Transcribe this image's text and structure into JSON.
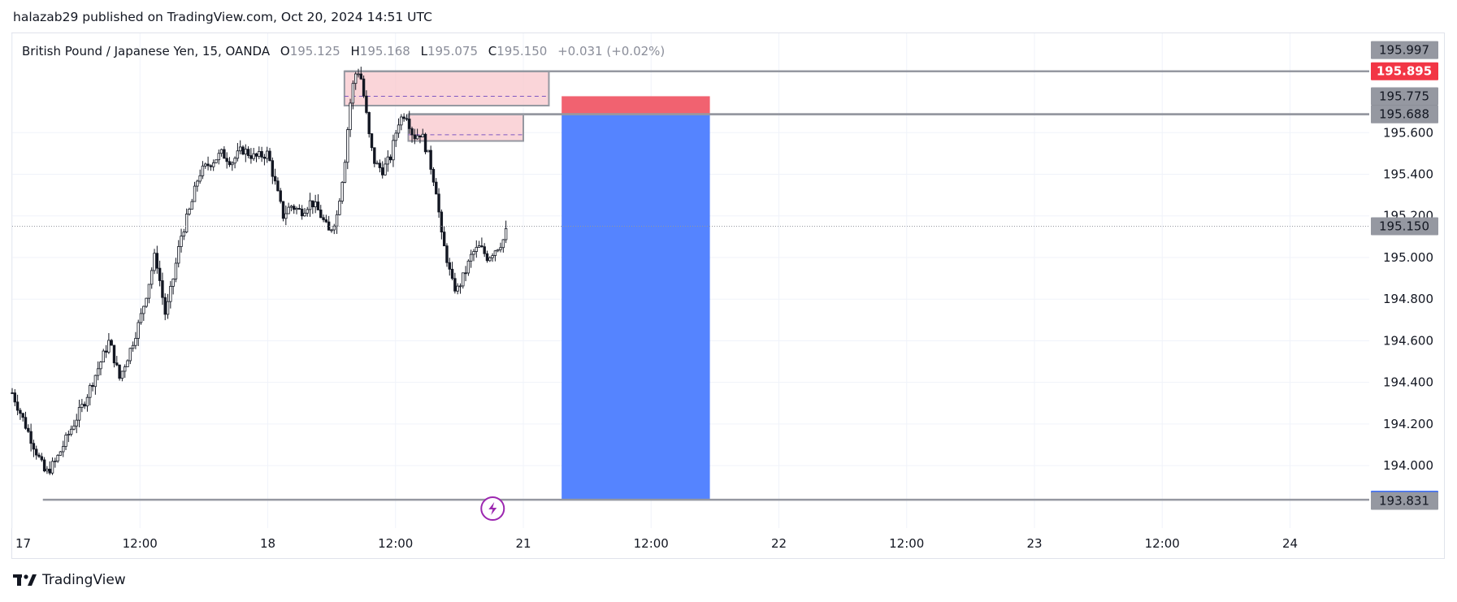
{
  "publisher_line": "halazab29 published on TradingView.com, Oct 20, 2024 14:51 UTC",
  "legend": {
    "symbol": "British Pound / Japanese Yen, 15, OANDA",
    "open_key": "O",
    "open": "195.125",
    "high_key": "H",
    "high": "195.168",
    "low_key": "L",
    "low": "195.075",
    "close_key": "C",
    "close": "195.150",
    "change": "+0.031 (+0.02%)"
  },
  "brand": "TradingView",
  "colors": {
    "candle": "#131722",
    "zone_fill": "#f8c7cc",
    "zone_border": "#9598a1",
    "stop": "#f05a68",
    "target": "#5080ff",
    "red_label": "#f23645",
    "blue_label": "#2962ff",
    "gray_label": "#9598a1",
    "dark_label": "#787b86",
    "lightning": "#9c27b0"
  },
  "chart_data": {
    "type": "candlestick",
    "symbol": "British Pound / Japanese Yen",
    "interval": "15",
    "exchange": "OANDA",
    "ylim": [
      193.7,
      196.05
    ],
    "x_ticks": [
      "17",
      "12:00",
      "18",
      "12:00",
      "21",
      "12:00",
      "22",
      "12:00",
      "23",
      "12:00",
      "24"
    ],
    "x_tick_pos": [
      0,
      0.5,
      1,
      1.5,
      2,
      2.5,
      3,
      3.5,
      4,
      4.5,
      5
    ],
    "xlim": [
      0,
      5.6
    ],
    "y_ticks": [
      195.6,
      195.4,
      195.2,
      195.0,
      194.8,
      194.6,
      194.4,
      194.2,
      194.0
    ],
    "y_tick_labels": [
      "195.600",
      "195.400",
      "195.200",
      "195.000",
      "194.800",
      "194.600",
      "194.400",
      "194.200",
      "194.000"
    ],
    "price_close_path": [
      [
        0.0,
        194.35
      ],
      [
        0.05,
        194.2
      ],
      [
        0.1,
        194.05
      ],
      [
        0.13,
        193.96
      ],
      [
        0.17,
        194.02
      ],
      [
        0.22,
        194.15
      ],
      [
        0.28,
        194.3
      ],
      [
        0.33,
        194.45
      ],
      [
        0.38,
        194.6
      ],
      [
        0.42,
        194.42
      ],
      [
        0.46,
        194.55
      ],
      [
        0.5,
        194.7
      ],
      [
        0.53,
        194.85
      ],
      [
        0.56,
        195.02
      ],
      [
        0.6,
        194.72
      ],
      [
        0.63,
        194.9
      ],
      [
        0.66,
        195.1
      ],
      [
        0.7,
        195.25
      ],
      [
        0.73,
        195.4
      ],
      [
        0.77,
        195.45
      ],
      [
        0.82,
        195.5
      ],
      [
        0.86,
        195.46
      ],
      [
        0.9,
        195.52
      ],
      [
        0.95,
        195.48
      ],
      [
        1.0,
        195.5
      ],
      [
        1.03,
        195.35
      ],
      [
        1.06,
        195.2
      ],
      [
        1.09,
        195.25
      ],
      [
        1.13,
        195.22
      ],
      [
        1.17,
        195.27
      ],
      [
        1.2,
        195.22
      ],
      [
        1.24,
        195.12
      ],
      [
        1.27,
        195.2
      ],
      [
        1.3,
        195.45
      ],
      [
        1.32,
        195.72
      ],
      [
        1.34,
        195.88
      ],
      [
        1.36,
        195.9
      ],
      [
        1.38,
        195.74
      ],
      [
        1.4,
        195.55
      ],
      [
        1.42,
        195.45
      ],
      [
        1.45,
        195.42
      ],
      [
        1.48,
        195.48
      ],
      [
        1.51,
        195.65
      ],
      [
        1.54,
        195.7
      ],
      [
        1.57,
        195.58
      ],
      [
        1.6,
        195.6
      ],
      [
        1.63,
        195.48
      ],
      [
        1.66,
        195.32
      ],
      [
        1.68,
        195.1
      ],
      [
        1.7,
        195.0
      ],
      [
        1.72,
        194.88
      ],
      [
        1.74,
        194.84
      ],
      [
        1.77,
        194.92
      ],
      [
        1.8,
        195.02
      ],
      [
        1.83,
        195.05
      ],
      [
        1.86,
        195.0
      ],
      [
        1.89,
        195.04
      ],
      [
        1.92,
        195.08
      ],
      [
        1.94,
        195.15
      ]
    ],
    "zones": [
      {
        "x_start": 1.3,
        "x_end": 2.1,
        "top": 195.895,
        "bottom": 195.73,
        "mid": 195.775
      },
      {
        "x_start": 1.55,
        "x_end": 2.0,
        "top": 195.688,
        "bottom": 195.56,
        "mid": 195.59
      }
    ],
    "position": {
      "x_start": 2.15,
      "x_end": 2.73,
      "entry": 195.689,
      "stop": 195.775,
      "target": 193.836
    },
    "horizontal_lines": [
      {
        "price": 195.895,
        "x_start": 1.3
      },
      {
        "price": 195.689,
        "x_start": 1.55
      },
      {
        "price": 195.688,
        "x_start": 1.55
      },
      {
        "price": 193.836,
        "x_start": 0.12
      }
    ],
    "last_price": 195.15,
    "axis_labels": [
      {
        "price": 195.997,
        "text": "195.997",
        "style": "gray"
      },
      {
        "price": 195.895,
        "text": "195.895",
        "style": "red"
      },
      {
        "price": 195.775,
        "text": "195.775",
        "style": "gray"
      },
      {
        "price": 195.689,
        "text": "195.689",
        "style": "dark"
      },
      {
        "price": 195.688,
        "text": "195.688",
        "style": "gray"
      },
      {
        "price": 195.15,
        "text": "195.150",
        "style": "gray"
      },
      {
        "price": 193.836,
        "text": "193.836",
        "style": "blue"
      },
      {
        "price": 193.831,
        "text": "193.831",
        "style": "gray"
      }
    ],
    "event_marker_x": 1.88
  }
}
